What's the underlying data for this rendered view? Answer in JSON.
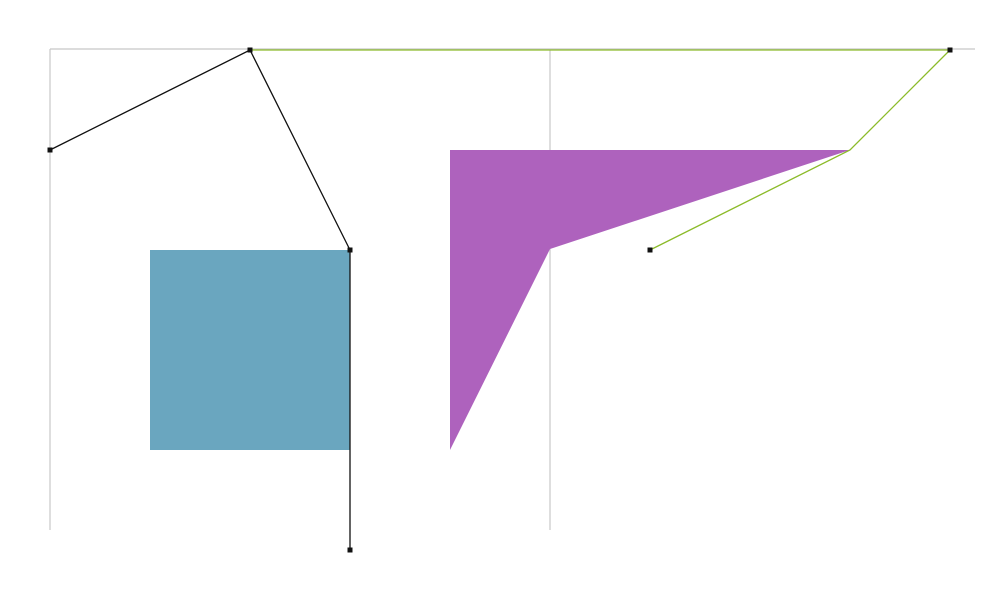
{
  "colors": {
    "background": "#ffffff",
    "guide": "#c8c8c8",
    "square_fill": "#6aa6bf",
    "wedge_fill": "#ae62bd",
    "black_path": "#111111",
    "green_path": "#8cbb2a",
    "handle": "#111111"
  },
  "shapes": [
    {
      "name": "teal-square",
      "kind": "filled-rectangle",
      "color_key": "square_fill"
    },
    {
      "name": "purple-wedge",
      "kind": "filled-polygon",
      "color_key": "wedge_fill"
    }
  ],
  "paths": [
    {
      "name": "black-polyline",
      "color_key": "black_path",
      "handle_count": 4
    },
    {
      "name": "green-polyline",
      "color_key": "green_path",
      "handle_count": 4
    }
  ]
}
